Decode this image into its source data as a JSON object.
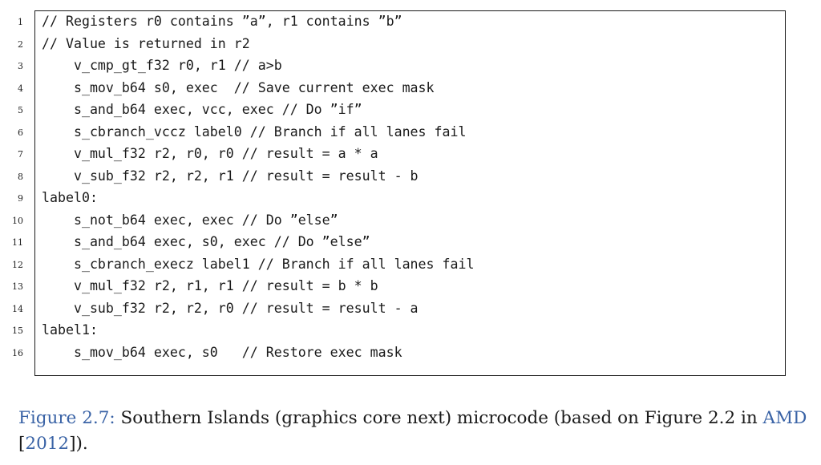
{
  "listing": {
    "lines": [
      {
        "number": "1",
        "code": "// Registers r0 contains ”a”, r1 contains ”b”"
      },
      {
        "number": "2",
        "code": "// Value is returned in r2"
      },
      {
        "number": "3",
        "code": "    v_cmp_gt_f32 r0, r1 // a>b"
      },
      {
        "number": "4",
        "code": "    s_mov_b64 s0, exec  // Save current exec mask"
      },
      {
        "number": "5",
        "code": "    s_and_b64 exec, vcc, exec // Do ”if”"
      },
      {
        "number": "6",
        "code": "    s_cbranch_vccz label0 // Branch if all lanes fail"
      },
      {
        "number": "7",
        "code": "    v_mul_f32 r2, r0, r0 // result = a * a"
      },
      {
        "number": "8",
        "code": "    v_sub_f32 r2, r2, r1 // result = result - b"
      },
      {
        "number": "9",
        "code": "label0:"
      },
      {
        "number": "10",
        "code": "    s_not_b64 exec, exec // Do ”else”"
      },
      {
        "number": "11",
        "code": "    s_and_b64 exec, s0, exec // Do ”else”"
      },
      {
        "number": "12",
        "code": "    s_cbranch_execz label1 // Branch if all lanes fail"
      },
      {
        "number": "13",
        "code": "    v_mul_f32 r2, r1, r1 // result = b * b"
      },
      {
        "number": "14",
        "code": "    v_sub_f32 r2, r2, r0 // result = result - a"
      },
      {
        "number": "15",
        "code": "label1:"
      },
      {
        "number": "16",
        "code": "    s_mov_b64 exec, s0   // Restore exec mask"
      }
    ]
  },
  "caption": {
    "label": "Figure 2.7:",
    "text": " Southern Islands (graphics core next) microcode (based on Figure 2.2 in ",
    "cite_name": "AMD",
    "cite_open": " [",
    "cite_year": "2012",
    "cite_close": "])."
  },
  "colors": {
    "link": "#3a63a6",
    "text": "#1a1a1a",
    "border": "#1a1a1a"
  }
}
